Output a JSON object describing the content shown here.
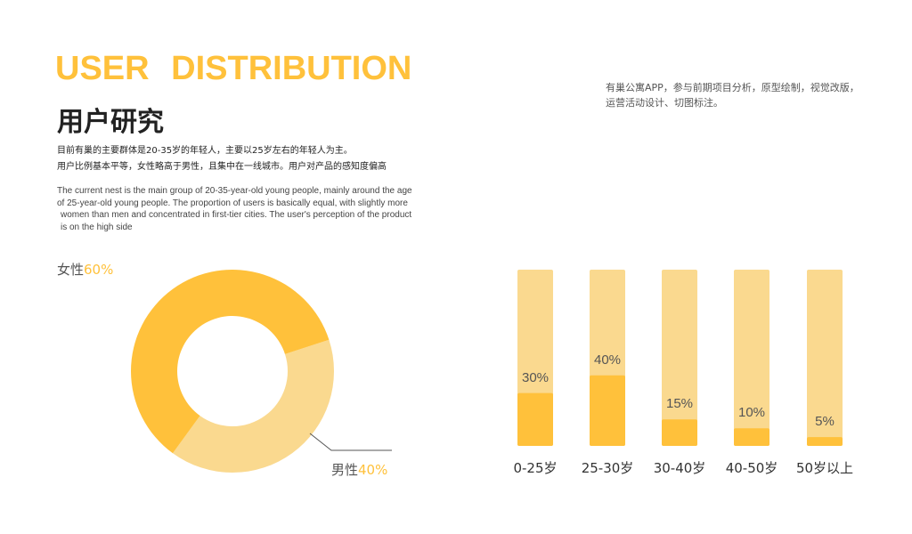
{
  "header": {
    "title_en": "USER  DISTRIBUTION",
    "title_cn": "用户研究"
  },
  "summary_cn": [
    "目前有巢的主要群体是20-35岁的年轻人，主要以25岁左右的年轻人为主。",
    "用户比例基本平等，女性略高于男性，且集中在一线城市。用户对产品的感知度偏高"
  ],
  "summary_en": [
    "The current nest is the main group of 20-35-year-old young people, mainly around the age",
    "of 25-year-old young people. The proportion of users is basically equal, with slightly more",
    "women than men and concentrated in first-tier cities. The user's perception of the product",
    "is on the high side"
  ],
  "project_desc": [
    "有巢公寓APP，参与前期项目分析，原型绘制，视觉改版，",
    "运营活动设计、切图标注。"
  ],
  "colors": {
    "accent": "#FFC13B",
    "light": "#FAD98F"
  },
  "chart_data": [
    {
      "type": "pie",
      "variant": "donut",
      "slices": [
        {
          "label": "女性",
          "pct_label": "60%",
          "value": 60
        },
        {
          "label": "男性",
          "pct_label": "40%",
          "value": 40
        }
      ]
    },
    {
      "type": "bar",
      "categories": [
        "0-25岁",
        "25-30岁",
        "30-40岁",
        "40-50岁",
        "50岁以上"
      ],
      "values": [
        30,
        40,
        15,
        10,
        5
      ],
      "labels": [
        "30%",
        "40%",
        "15%",
        "10%",
        "5%"
      ],
      "ylim": [
        0,
        100
      ]
    }
  ]
}
